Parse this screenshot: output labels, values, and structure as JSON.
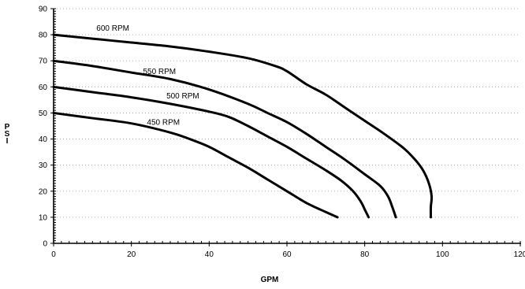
{
  "chart_data": {
    "type": "line",
    "title": "",
    "xlabel": "GPM",
    "ylabel": "PSI",
    "xlim": [
      0,
      120
    ],
    "ylim": [
      0,
      90
    ],
    "x_ticks": [
      "0",
      "20",
      "40",
      "60",
      "80",
      "100",
      "120"
    ],
    "y_ticks": [
      "0",
      "10",
      "20",
      "30",
      "40",
      "50",
      "60",
      "70",
      "80",
      "90"
    ],
    "grid": "horizontal dotted",
    "legend": "none",
    "line_color": "#000000",
    "series": [
      {
        "name": "600 RPM",
        "points": [
          [
            0,
            80
          ],
          [
            10,
            78.5
          ],
          [
            20,
            77
          ],
          [
            30,
            75.5
          ],
          [
            40,
            73.5
          ],
          [
            50,
            71
          ],
          [
            57,
            68
          ],
          [
            60,
            66
          ],
          [
            65,
            61
          ],
          [
            70,
            57
          ],
          [
            75,
            52
          ],
          [
            80,
            47
          ],
          [
            85,
            42
          ],
          [
            90,
            36.5
          ],
          [
            93,
            32
          ],
          [
            95,
            28
          ],
          [
            96.5,
            23
          ],
          [
            97.2,
            18
          ],
          [
            97,
            14
          ],
          [
            97,
            10
          ]
        ]
      },
      {
        "name": "550 RPM",
        "points": [
          [
            0,
            70
          ],
          [
            10,
            68
          ],
          [
            20,
            65.5
          ],
          [
            30,
            63
          ],
          [
            40,
            59
          ],
          [
            50,
            53.5
          ],
          [
            55,
            50
          ],
          [
            60,
            46.5
          ],
          [
            65,
            42
          ],
          [
            70,
            37
          ],
          [
            75,
            32
          ],
          [
            80,
            26.5
          ],
          [
            84,
            22
          ],
          [
            86,
            18
          ],
          [
            87.2,
            13.5
          ],
          [
            88,
            10
          ]
        ]
      },
      {
        "name": "500 RPM",
        "points": [
          [
            0,
            60
          ],
          [
            10,
            58
          ],
          [
            20,
            56
          ],
          [
            30,
            53.5
          ],
          [
            40,
            50.5
          ],
          [
            45,
            48.5
          ],
          [
            50,
            45
          ],
          [
            55,
            41
          ],
          [
            60,
            37
          ],
          [
            65,
            32.5
          ],
          [
            70,
            28
          ],
          [
            74,
            24
          ],
          [
            77,
            20
          ],
          [
            79,
            16
          ],
          [
            80,
            13
          ],
          [
            81,
            10
          ]
        ]
      },
      {
        "name": "450 RPM",
        "points": [
          [
            0,
            50
          ],
          [
            10,
            48
          ],
          [
            20,
            46
          ],
          [
            30,
            42.5
          ],
          [
            35,
            40
          ],
          [
            40,
            37
          ],
          [
            45,
            33
          ],
          [
            50,
            29
          ],
          [
            55,
            24.5
          ],
          [
            60,
            20
          ],
          [
            65,
            15.5
          ],
          [
            70,
            12
          ],
          [
            73,
            10
          ]
        ]
      }
    ]
  }
}
